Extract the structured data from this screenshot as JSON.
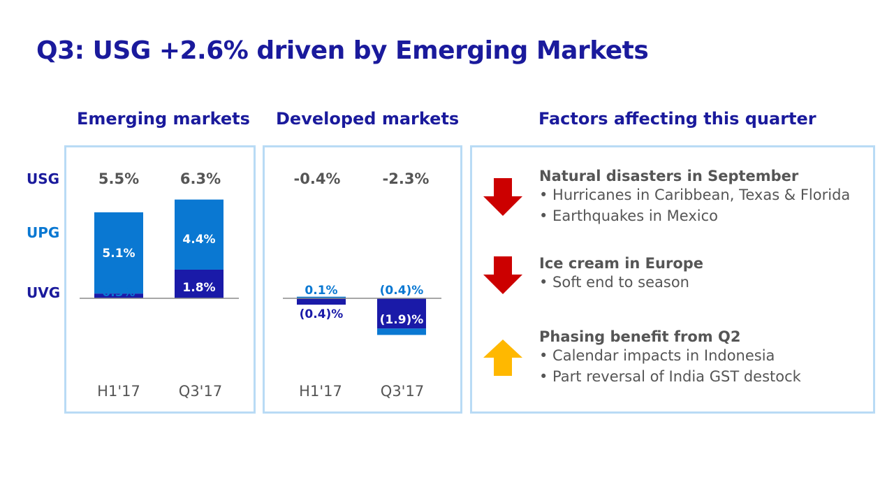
{
  "title": "Q3: USG +2.6% driven by Emerging Markets",
  "headings": {
    "emerging": "Emerging markets",
    "developed": "Developed markets",
    "factors": "Factors affecting this quarter"
  },
  "row_labels": {
    "usg": "USG",
    "upg": "UPG",
    "uvg": "UVG"
  },
  "colors": {
    "upg": "#0a78d2",
    "uvg": "#1a1aa8",
    "title": "#1a1a9c",
    "down_arrow": "#cc0000",
    "up_arrow": "#ffb800"
  },
  "chart_data": [
    {
      "type": "bar",
      "stacked": true,
      "categories": [
        "H1'17",
        "Q3'17"
      ],
      "usg_labels": [
        "5.5%",
        "6.3%"
      ],
      "series": [
        {
          "name": "UVG",
          "values": [
            0.3,
            1.8
          ],
          "labels": [
            "0.3%",
            "1.8%"
          ]
        },
        {
          "name": "UPG",
          "values": [
            5.1,
            4.4
          ],
          "labels": [
            "5.1%",
            "4.4%"
          ]
        }
      ]
    },
    {
      "type": "bar",
      "stacked": true,
      "categories": [
        "H1'17",
        "Q3'17"
      ],
      "usg_labels": [
        "-0.4%",
        "-2.3%"
      ],
      "series": [
        {
          "name": "UVG",
          "values": [
            -0.4,
            -1.9
          ],
          "labels": [
            "(0.4)%",
            "(1.9)%"
          ]
        },
        {
          "name": "UPG",
          "values": [
            0.1,
            -0.4
          ],
          "labels": [
            "0.1%",
            "(0.4)%"
          ]
        }
      ]
    }
  ],
  "factors": [
    {
      "direction": "down",
      "heading": "Natural disasters in September",
      "bullets": [
        "• Hurricanes in Caribbean, Texas & Florida",
        "• Earthquakes in Mexico"
      ]
    },
    {
      "direction": "down",
      "heading": "Ice cream in Europe",
      "bullets": [
        "• Soft end to season"
      ]
    },
    {
      "direction": "up",
      "heading": "Phasing benefit from Q2",
      "bullets": [
        "• Calendar impacts in Indonesia",
        "• Part reversal of India GST destock"
      ]
    }
  ]
}
